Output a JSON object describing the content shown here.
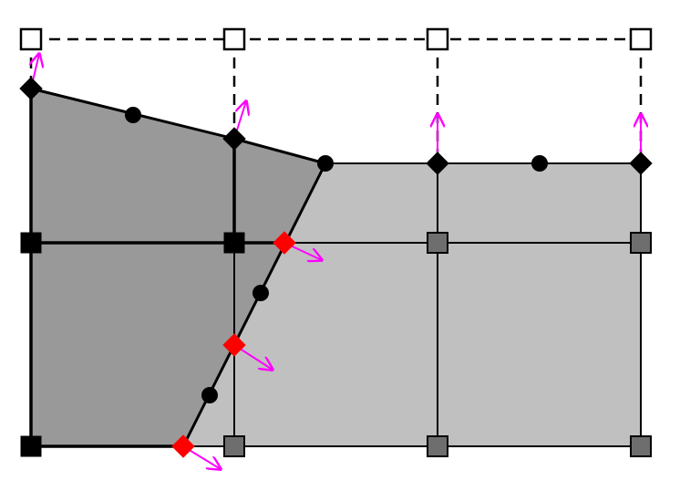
{
  "diagram": {
    "colors": {
      "background": "#ffffff",
      "dark_region": "#999999",
      "light_region": "#c0c0c0",
      "stroke": "#000000",
      "node_hollow_fill": "#ffffff",
      "node_grey_fill": "#6e6e6e",
      "node_black_fill": "#000000",
      "intersection_fill": "#ff0000",
      "arrow_color": "#ff00ff"
    },
    "legend": []
  }
}
